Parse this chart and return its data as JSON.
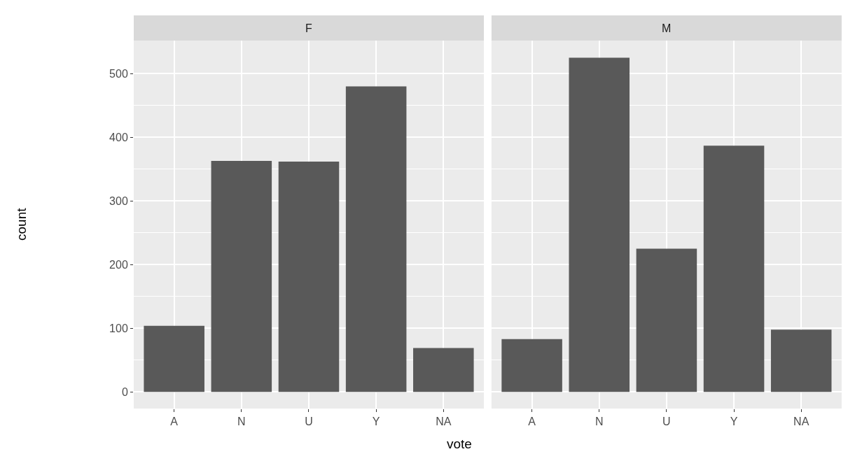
{
  "chart_data": [
    {
      "type": "bar",
      "title": "F",
      "xlabel": "vote",
      "ylabel": "count",
      "categories": [
        "A",
        "N",
        "U",
        "Y",
        "NA"
      ],
      "values": [
        104,
        363,
        362,
        480,
        69
      ],
      "color": "#595959",
      "ylim": [
        -26,
        552
      ],
      "yticks": [
        0,
        100,
        200,
        300,
        400,
        500
      ],
      "grid": true
    },
    {
      "type": "bar",
      "title": "M",
      "categories": [
        "A",
        "N",
        "U",
        "Y",
        "NA"
      ],
      "values": [
        83,
        525,
        225,
        387,
        98
      ],
      "color": "#595959",
      "ylim": [
        -26,
        552
      ],
      "yticks": [
        0,
        100,
        200,
        300,
        400,
        500
      ],
      "grid": true,
      "tick_labels": "x"
    }
  ]
}
